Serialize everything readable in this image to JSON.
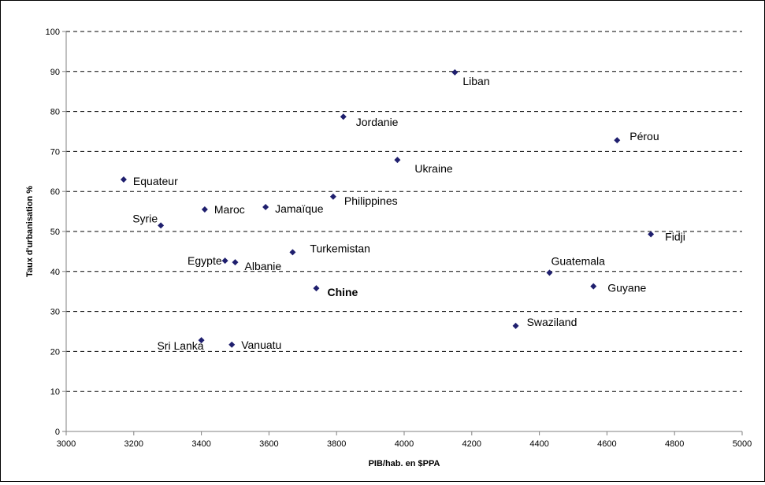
{
  "chart_data": {
    "type": "scatter",
    "title": "",
    "xlabel": "PIB/hab. en $PPA",
    "ylabel": "Taux d'urbanisation %",
    "xlim": [
      3000,
      5000
    ],
    "ylim": [
      0,
      100
    ],
    "x_ticks": [
      3000,
      3200,
      3400,
      3600,
      3800,
      4000,
      4200,
      4400,
      4600,
      4800,
      5000
    ],
    "y_ticks": [
      0,
      10,
      20,
      30,
      40,
      50,
      60,
      70,
      80,
      90,
      100
    ],
    "grid": "horizontal dashed",
    "legend": "none",
    "marker_color": "#1f1f6e",
    "points": [
      {
        "label": "Equateur",
        "x": 3170,
        "y": 63
      },
      {
        "label": "Syrie",
        "x": 3280,
        "y": 51.5
      },
      {
        "label": "Maroc",
        "x": 3410,
        "y": 55.5
      },
      {
        "label": "Egypte",
        "x": 3470,
        "y": 42.7
      },
      {
        "label": "Albanie",
        "x": 3500,
        "y": 42.3
      },
      {
        "label": "Sri Lanka",
        "x": 3400,
        "y": 22.8
      },
      {
        "label": "Vanuatu",
        "x": 3490,
        "y": 21.7
      },
      {
        "label": "Jamaïque",
        "x": 3590,
        "y": 56.1
      },
      {
        "label": "Turkemistan",
        "x": 3670,
        "y": 44.8
      },
      {
        "label": "Chine",
        "x": 3740,
        "y": 35.8,
        "bold": true
      },
      {
        "label": "Philippines",
        "x": 3790,
        "y": 58.7
      },
      {
        "label": "Jordanie",
        "x": 3820,
        "y": 78.7
      },
      {
        "label": "Ukraine",
        "x": 3980,
        "y": 67.9
      },
      {
        "label": "Liban",
        "x": 4150,
        "y": 89.8
      },
      {
        "label": "Swaziland",
        "x": 4330,
        "y": 26.4
      },
      {
        "label": "Guatemala",
        "x": 4430,
        "y": 39.7
      },
      {
        "label": "Guyane",
        "x": 4560,
        "y": 36.3
      },
      {
        "label": "Pérou",
        "x": 4630,
        "y": 72.8
      },
      {
        "label": "Fidji",
        "x": 4730,
        "y": 49.3
      }
    ]
  }
}
